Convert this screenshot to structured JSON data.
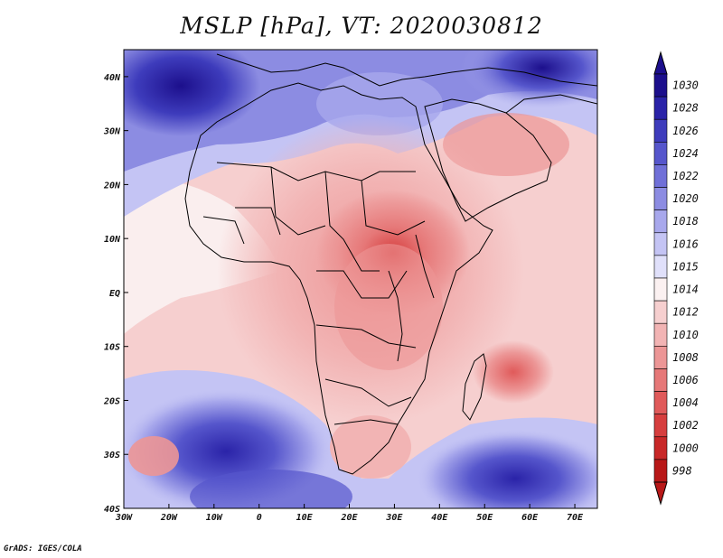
{
  "title": "MSLP [hPa], VT: 2020030812",
  "credit": "GrADS: IGES/COLA",
  "map": {
    "lon_range": [
      -30,
      75
    ],
    "lat_range": [
      -40,
      45
    ],
    "lon_ticks": [
      {
        "value": -30,
        "label": "30W"
      },
      {
        "value": -20,
        "label": "20W"
      },
      {
        "value": -10,
        "label": "10W"
      },
      {
        "value": 0,
        "label": "0"
      },
      {
        "value": 10,
        "label": "10E"
      },
      {
        "value": 20,
        "label": "20E"
      },
      {
        "value": 30,
        "label": "30E"
      },
      {
        "value": 40,
        "label": "40E"
      },
      {
        "value": 50,
        "label": "50E"
      },
      {
        "value": 60,
        "label": "60E"
      },
      {
        "value": 70,
        "label": "70E"
      }
    ],
    "lat_ticks": [
      {
        "value": 40,
        "label": "40N"
      },
      {
        "value": 30,
        "label": "30N"
      },
      {
        "value": 20,
        "label": "20N"
      },
      {
        "value": 10,
        "label": "10N"
      },
      {
        "value": 0,
        "label": "EQ"
      },
      {
        "value": -10,
        "label": "10S"
      },
      {
        "value": -20,
        "label": "20S"
      },
      {
        "value": -30,
        "label": "30S"
      },
      {
        "value": -40,
        "label": "40S"
      }
    ]
  },
  "colorbar": {
    "levels": [
      "1030",
      "1028",
      "1026",
      "1024",
      "1022",
      "1020",
      "1018",
      "1016",
      "1015",
      "1014",
      "1012",
      "1010",
      "1008",
      "1006",
      "1004",
      "1002",
      "1000",
      "998"
    ],
    "colors": [
      "#1c0f8c",
      "#2a23a8",
      "#3e3cbc",
      "#5656cc",
      "#7070d8",
      "#8c8ce2",
      "#a8a8ec",
      "#c4c4f4",
      "#e0e0fa",
      "#fbf1f1",
      "#f6cfcf",
      "#f2b4b4",
      "#ec9696",
      "#e67878",
      "#e05a5a",
      "#d63e3e",
      "#c82828",
      "#b81818"
    ]
  }
}
